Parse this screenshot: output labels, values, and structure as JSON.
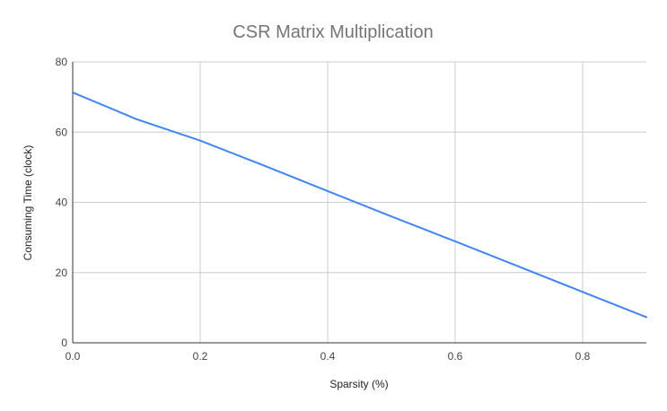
{
  "chart_data": {
    "type": "line",
    "title": "CSR Matrix Multiplication",
    "xlabel": "Sparsity (%)",
    "ylabel": "Consuming Time (clock)",
    "xlim": [
      0.0,
      0.9
    ],
    "ylim": [
      0,
      80
    ],
    "x_ticks": [
      0.0,
      0.2,
      0.4,
      0.6,
      0.8
    ],
    "x_tick_labels": [
      "0.0",
      "0.2",
      "0.4",
      "0.6",
      "0.8"
    ],
    "y_ticks": [
      0,
      20,
      40,
      60,
      80
    ],
    "y_tick_labels": [
      "0",
      "20",
      "40",
      "60",
      "80"
    ],
    "grid": true,
    "legend": "none",
    "series": [
      {
        "color": "#4285f4",
        "x": [
          0.0,
          0.1,
          0.2,
          0.3,
          0.4,
          0.5,
          0.6,
          0.7,
          0.8,
          0.9
        ],
        "values": [
          71.3,
          63.7,
          57.6,
          50.5,
          43.2,
          36.0,
          28.9,
          21.7,
          14.5,
          7.3
        ]
      }
    ]
  }
}
